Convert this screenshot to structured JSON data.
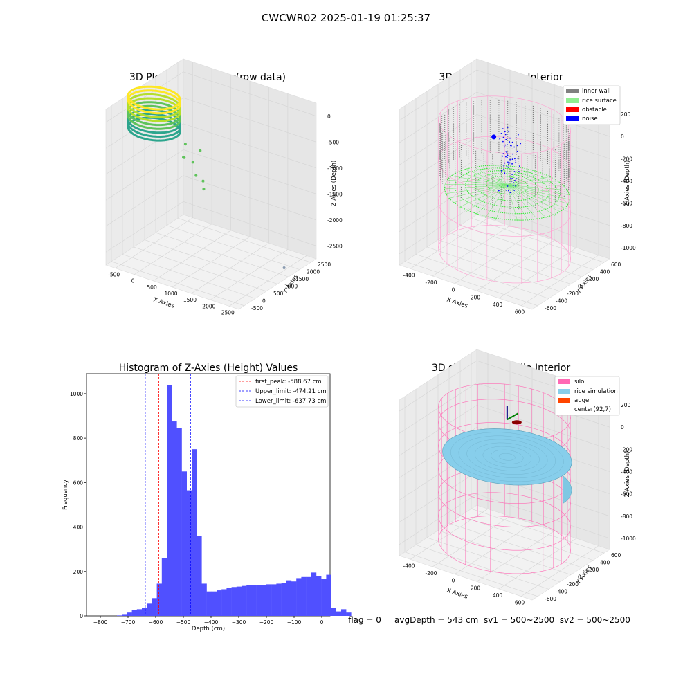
{
  "figure": {
    "title": "CWCWR02 2025-01-19 01:25:37",
    "footer": "flag = 0     avgDepth = 543 cm  sv1 = 500~2500  sv2 = 500~2500"
  },
  "chart_data": [
    {
      "type": "scatter3d",
      "title": "3D Plot of Silo Interior(row data)",
      "xlabel": "X Axies",
      "ylabel": "Y Axies",
      "zlabel": "Z Axies (Depth)",
      "xticks": [
        "-500",
        "0",
        "500",
        "1000",
        "1500",
        "2000",
        "2500"
      ],
      "yticks": [
        "-500",
        "0",
        "500",
        "1000",
        "1500",
        "2000",
        "2500"
      ],
      "zticks": [
        "0",
        "-500",
        "-1000",
        "-1500",
        "-2000",
        "-2500"
      ],
      "xlim": [
        -700,
        2700
      ],
      "ylim": [
        -700,
        2700
      ],
      "zlim": [
        -2600,
        100
      ],
      "colormap": [
        "#2ca58d",
        "#5fc35b",
        "#b5de2b",
        "#fde725"
      ]
    },
    {
      "type": "scatter3d",
      "title": "3D classify of Silo Interior",
      "xlabel": "X Axies",
      "ylabel": "Y Axies",
      "zlabel": "Z Axies (Depth)",
      "xticks": [
        "-400",
        "-200",
        "0",
        "200",
        "400",
        "600"
      ],
      "yticks": [
        "-600",
        "-400",
        "-200",
        "0",
        "200",
        "400",
        "600"
      ],
      "zticks": [
        "200",
        "0",
        "-200",
        "-400",
        "-600",
        "-800",
        "-1000"
      ],
      "legend": [
        {
          "label": "inner wall",
          "color": "#808080"
        },
        {
          "label": "rice surface",
          "color": "#90ee90"
        },
        {
          "label": "obstacle",
          "color": "#ff0000"
        },
        {
          "label": "noise",
          "color": "#0000ff"
        }
      ],
      "legend_position": "top-right"
    },
    {
      "type": "bar",
      "title": "Histogram of Z-Axies (Height) Values",
      "xlabel": "Depth (cm)",
      "ylabel": "Frequency",
      "xlim": [
        -850,
        30
      ],
      "ylim": [
        0,
        1090
      ],
      "xticks": [
        -800,
        -700,
        -600,
        -500,
        -400,
        -300,
        -200,
        -100,
        0
      ],
      "yticks": [
        0,
        200,
        400,
        600,
        800,
        1000
      ],
      "bar_color": "#5050ff",
      "bin_start": -740,
      "bin_width": 18,
      "values": [
        2,
        5,
        15,
        25,
        30,
        35,
        55,
        80,
        145,
        260,
        1040,
        875,
        845,
        650,
        565,
        750,
        360,
        145,
        110,
        110,
        115,
        120,
        125,
        130,
        132,
        135,
        140,
        138,
        140,
        138,
        142,
        142,
        145,
        148,
        160,
        155,
        170,
        175,
        175,
        195,
        180,
        165,
        185,
        35,
        20,
        30,
        15
      ],
      "lines": [
        {
          "label": "first_peak: -588.67 cm",
          "x": -588.67,
          "color": "#ff0000"
        },
        {
          "label": "Upper_limit: -474.21 cm",
          "x": -474.21,
          "color": "#0000ff"
        },
        {
          "label": "Lower_limit: -637.73 cm",
          "x": -637.73,
          "color": "#0000ff"
        }
      ],
      "legend_position": "top-right"
    },
    {
      "type": "surface3d",
      "title": "3D simulation of Silo Interior",
      "xlabel": "X Axies",
      "ylabel": "Y Axies",
      "zlabel": "Z Axies (Depth)",
      "xticks": [
        "-400",
        "-200",
        "0",
        "200",
        "400",
        "600"
      ],
      "yticks": [
        "-600",
        "-400",
        "-200",
        "0",
        "200",
        "400",
        "600"
      ],
      "zticks": [
        "200",
        "0",
        "-200",
        "-400",
        "-600",
        "-800",
        "-1000"
      ],
      "legend": [
        {
          "label": "silo",
          "color": "#ff69b4"
        },
        {
          "label": "rice simulation",
          "color": "#87ceeb"
        },
        {
          "label": "auger",
          "color": "#ff4500"
        },
        {
          "label": "center(92,7)",
          "color": "none"
        }
      ],
      "legend_position": "top-right"
    }
  ]
}
